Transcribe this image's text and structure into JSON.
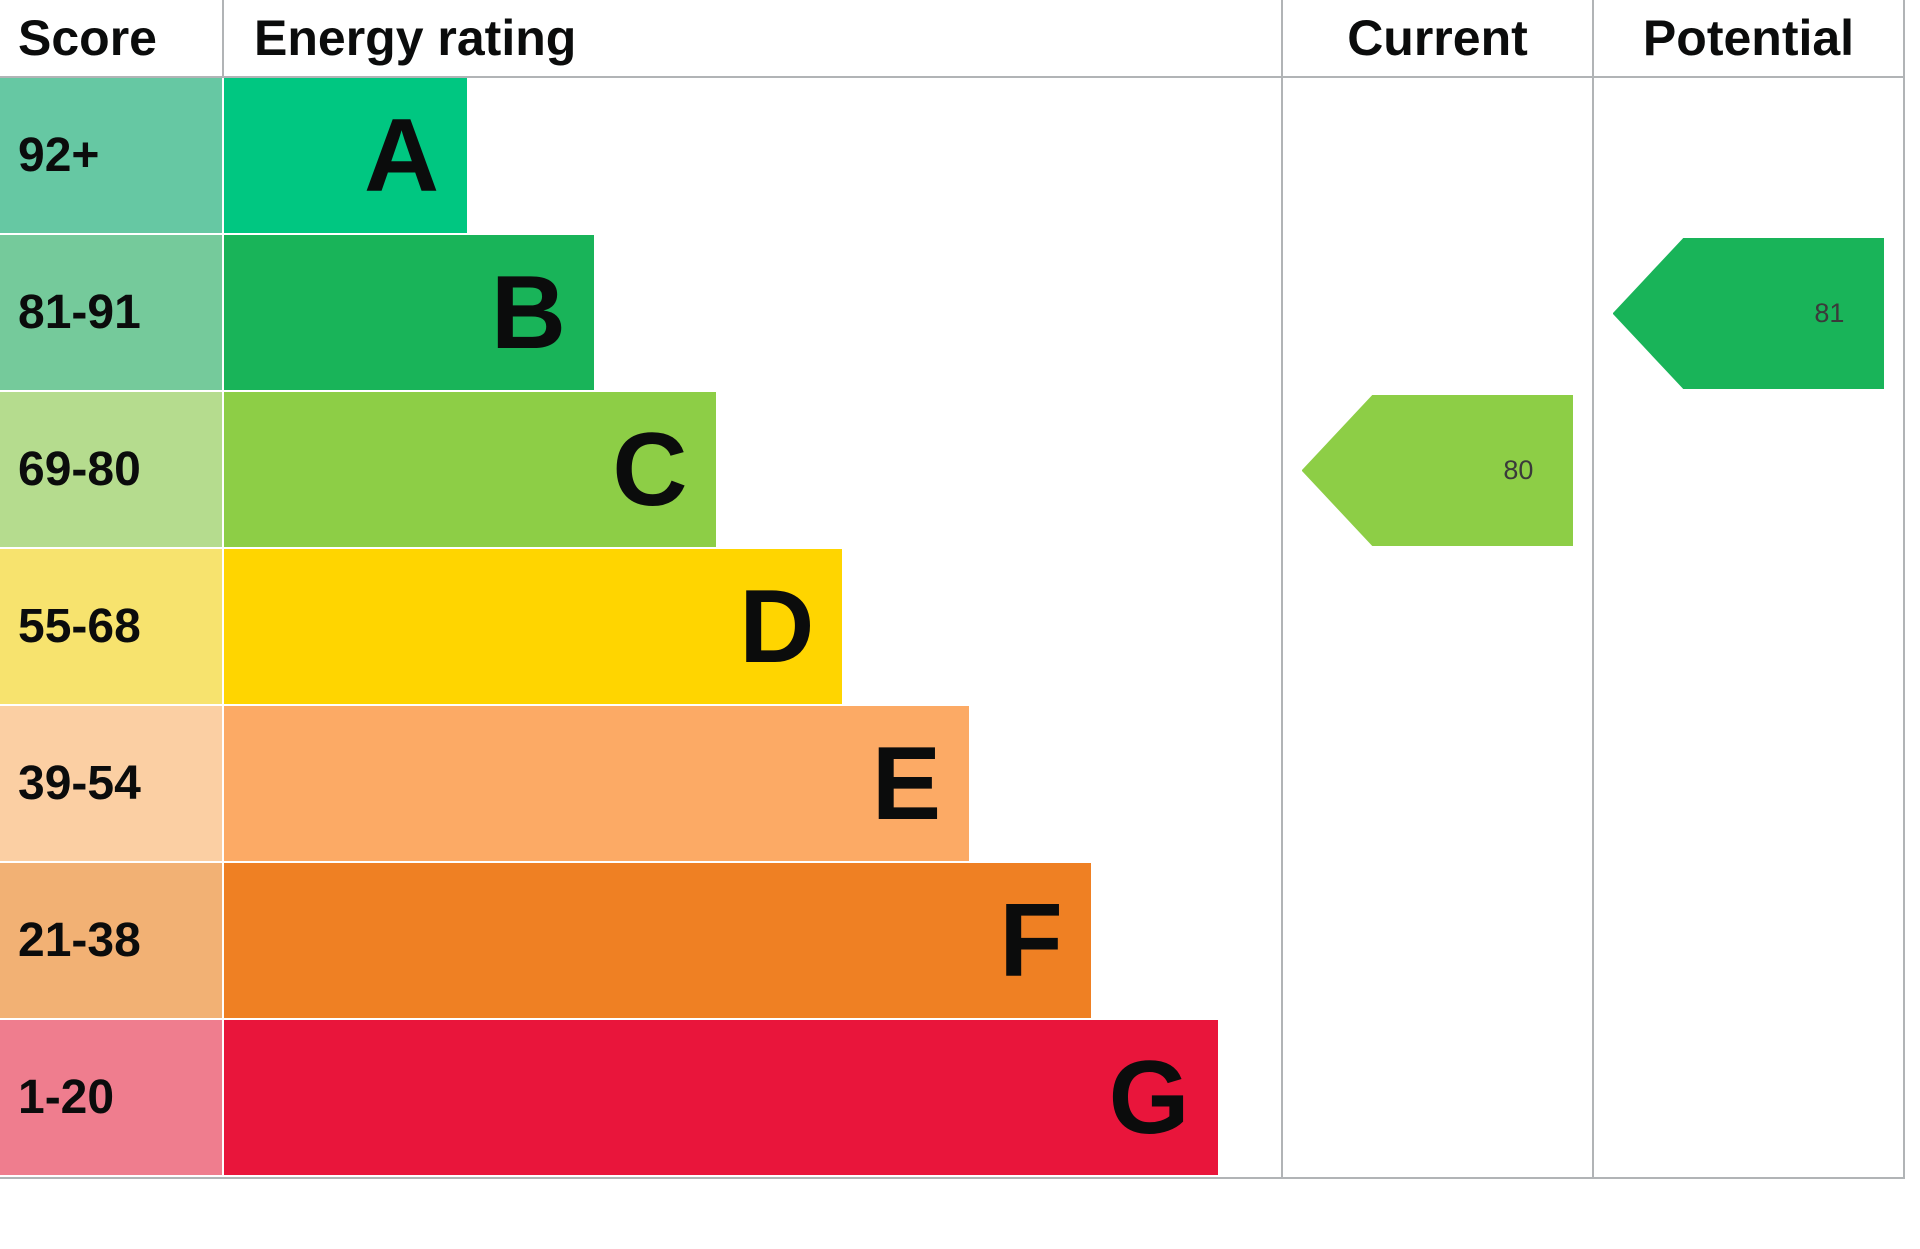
{
  "headers": {
    "score": "Score",
    "rating": "Energy rating",
    "current": "Current",
    "potential": "Potential"
  },
  "bands": [
    {
      "letter": "A",
      "score": "92+",
      "bar_color": "#00c781",
      "score_bg": "#66c8a3",
      "width_pct": 23
    },
    {
      "letter": "B",
      "score": "81-91",
      "bar_color": "#19b459",
      "score_bg": "#75ca9b",
      "width_pct": 35
    },
    {
      "letter": "C",
      "score": "69-80",
      "bar_color": "#8dce46",
      "score_bg": "#b5dc8e",
      "width_pct": 46.5
    },
    {
      "letter": "D",
      "score": "55-68",
      "bar_color": "#ffd500",
      "score_bg": "#f7e36e",
      "width_pct": 58.5
    },
    {
      "letter": "E",
      "score": "39-54",
      "bar_color": "#fcaa65",
      "score_bg": "#fbcfa3",
      "width_pct": 70.5
    },
    {
      "letter": "F",
      "score": "21-38",
      "bar_color": "#ef8023",
      "score_bg": "#f2b174",
      "width_pct": 82
    },
    {
      "letter": "G",
      "score": "1-20",
      "bar_color": "#e9153b",
      "score_bg": "#ef7d8e",
      "width_pct": 94
    }
  ],
  "current": {
    "value": "80",
    "band": "C"
  },
  "potential": {
    "value": "81",
    "band": "B"
  },
  "chart_data": {
    "type": "bar",
    "title": "Energy rating",
    "column_headers": [
      "Score",
      "Energy rating",
      "Current",
      "Potential"
    ],
    "categories": [
      "A",
      "B",
      "C",
      "D",
      "E",
      "F",
      "G"
    ],
    "score_ranges": [
      "92+",
      "81-91",
      "69-80",
      "55-68",
      "39-54",
      "21-38",
      "1-20"
    ],
    "bar_lengths_pct": [
      23,
      35,
      46.5,
      58.5,
      70.5,
      82,
      94
    ],
    "band_colors": [
      "#00c781",
      "#19b459",
      "#8dce46",
      "#ffd500",
      "#fcaa65",
      "#ef8023",
      "#e9153b"
    ],
    "current_rating": {
      "value": 80,
      "band": "C",
      "color": "#8dce46"
    },
    "potential_rating": {
      "value": 81,
      "band": "B",
      "color": "#19b459"
    },
    "legend_position": "none",
    "grid": false
  }
}
